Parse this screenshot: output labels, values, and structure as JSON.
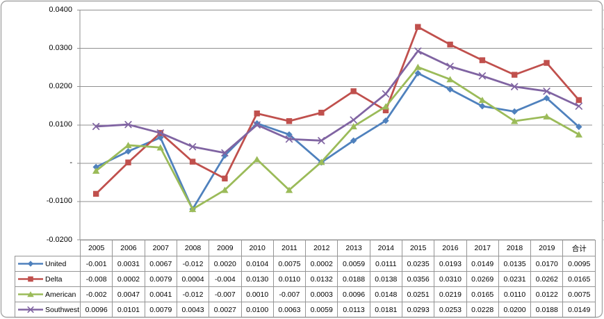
{
  "chart_data": {
    "type": "line",
    "title": "",
    "xlabel": "",
    "ylabel": "",
    "ylim": [
      -0.02,
      0.04
    ],
    "y_major_unit": 0.01,
    "y_tick_labels": [
      "0.0400",
      "0.0300",
      "0.0200",
      "0.0100",
      "-",
      "-0.0100",
      "-0.0200"
    ],
    "grid": true,
    "legend_position": "data-table-left",
    "data_table_shown": true,
    "categories": [
      "2005",
      "2006",
      "2007",
      "2008",
      "2009",
      "2010",
      "2011",
      "2012",
      "2013",
      "2014",
      "2015",
      "2016",
      "2017",
      "2018",
      "2019",
      "合计"
    ],
    "series": [
      {
        "name": "United",
        "color": "#4F81BD",
        "marker": "diamond",
        "values": [
          -0.001,
          0.0031,
          0.0067,
          -0.012,
          0.002,
          0.0104,
          0.0075,
          0.0002,
          0.0059,
          0.0111,
          0.0235,
          0.0193,
          0.0149,
          0.0135,
          0.017,
          0.0095
        ],
        "display": [
          "-0.001",
          "0.0031",
          "0.0067",
          "-0.012",
          "0.0020",
          "0.0104",
          "0.0075",
          "0.0002",
          "0.0059",
          "0.0111",
          "0.0235",
          "0.0193",
          "0.0149",
          "0.0135",
          "0.0170",
          "0.0095"
        ]
      },
      {
        "name": "Delta",
        "color": "#C0504D",
        "marker": "square",
        "values": [
          -0.008,
          0.0002,
          0.0079,
          0.0004,
          -0.004,
          0.013,
          0.011,
          0.0132,
          0.0188,
          0.0138,
          0.0356,
          0.031,
          0.0269,
          0.0231,
          0.0262,
          0.0165
        ],
        "display": [
          "-0.008",
          "0.0002",
          "0.0079",
          "0.0004",
          "-0.004",
          "0.0130",
          "0.0110",
          "0.0132",
          "0.0188",
          "0.0138",
          "0.0356",
          "0.0310",
          "0.0269",
          "0.0231",
          "0.0262",
          "0.0165"
        ]
      },
      {
        "name": "American",
        "color": "#9BBB59",
        "marker": "triangle",
        "values": [
          -0.002,
          0.0047,
          0.0041,
          -0.012,
          -0.007,
          0.001,
          -0.007,
          0.0003,
          0.0096,
          0.0148,
          0.0251,
          0.0219,
          0.0165,
          0.011,
          0.0122,
          0.0075
        ],
        "display": [
          "-0.002",
          "0.0047",
          "0.0041",
          "-0.012",
          "-0.007",
          "0.0010",
          "-0.007",
          "0.0003",
          "0.0096",
          "0.0148",
          "0.0251",
          "0.0219",
          "0.0165",
          "0.0110",
          "0.0122",
          "0.0075"
        ]
      },
      {
        "name": "Southwest",
        "color": "#8064A2",
        "marker": "x",
        "values": [
          0.0096,
          0.0101,
          0.0079,
          0.0043,
          0.0027,
          0.01,
          0.0063,
          0.0059,
          0.0113,
          0.0181,
          0.0293,
          0.0253,
          0.0228,
          0.02,
          0.0188,
          0.0149
        ],
        "display": [
          "0.0096",
          "0.0101",
          "0.0079",
          "0.0043",
          "0.0027",
          "0.0100",
          "0.0063",
          "0.0059",
          "0.0113",
          "0.0181",
          "0.0293",
          "0.0253",
          "0.0228",
          "0.0200",
          "0.0188",
          "0.0149"
        ]
      }
    ],
    "colors": {
      "gridline": "#8F8F8F",
      "axis": "#8F8F8F",
      "minor_tick": "#C6C6C6",
      "table_border": "#959595",
      "frame_border": "#A6A6A6",
      "text": "#000000"
    }
  }
}
